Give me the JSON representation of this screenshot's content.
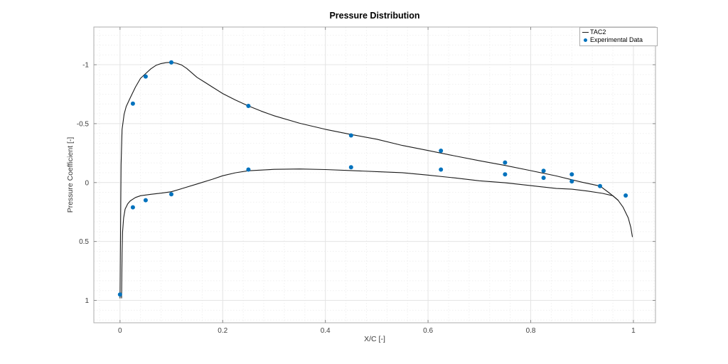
{
  "chart_data": {
    "type": "line+scatter",
    "title": "Pressure Distribution",
    "xlabel": "X/C [-]",
    "ylabel": "Pressure Coefficient [-]",
    "x_axis": {
      "lim": [
        -0.051,
        1.043
      ],
      "ticks": [
        0,
        0.2,
        0.4,
        0.6,
        0.8,
        1
      ],
      "tick_labels": [
        "0",
        "0.2",
        "0.4",
        "0.6",
        "0.8",
        "1"
      ],
      "minor_step": 0.04
    },
    "y_axis": {
      "reversed": true,
      "lim_top_to_bottom": [
        -1.32,
        1.19
      ],
      "ticks": [
        -1,
        -0.5,
        0,
        0.5,
        1
      ],
      "tick_labels": [
        "-1",
        "-0.5",
        "0",
        "0.5",
        "1"
      ],
      "minor_step": 0.08333
    },
    "grid": {
      "major": true,
      "minor": true
    },
    "legend": {
      "position": "top-right",
      "entries": [
        {
          "label": "TAC2",
          "swatch": "line",
          "color": "#1a1a1a"
        },
        {
          "label": "Experimental Data",
          "swatch": "marker",
          "color": "#0072BD"
        }
      ]
    },
    "series": [
      {
        "name": "TAC2",
        "type": "line",
        "color": "#1a1a1a",
        "line_width": 1.1,
        "branches": {
          "upper_surface": [
            [
              0.0,
              0.98
            ],
            [
              0.001,
              0.4
            ],
            [
              0.002,
              -0.15
            ],
            [
              0.004,
              -0.45
            ],
            [
              0.008,
              -0.58
            ],
            [
              0.012,
              -0.645
            ],
            [
              0.02,
              -0.72
            ],
            [
              0.03,
              -0.81
            ],
            [
              0.04,
              -0.885
            ],
            [
              0.05,
              -0.925
            ],
            [
              0.06,
              -0.965
            ],
            [
              0.07,
              -0.995
            ],
            [
              0.08,
              -1.01
            ],
            [
              0.09,
              -1.018
            ],
            [
              0.1,
              -1.02
            ],
            [
              0.11,
              -1.012
            ],
            [
              0.12,
              -0.998
            ],
            [
              0.13,
              -0.968
            ],
            [
              0.15,
              -0.893
            ],
            [
              0.165,
              -0.852
            ],
            [
              0.18,
              -0.81
            ],
            [
              0.2,
              -0.755
            ],
            [
              0.225,
              -0.7
            ],
            [
              0.25,
              -0.65
            ],
            [
              0.275,
              -0.606
            ],
            [
              0.3,
              -0.567
            ],
            [
              0.35,
              -0.503
            ],
            [
              0.4,
              -0.452
            ],
            [
              0.45,
              -0.408
            ],
            [
              0.5,
              -0.368
            ],
            [
              0.55,
              -0.315
            ],
            [
              0.6,
              -0.272
            ],
            [
              0.65,
              -0.228
            ],
            [
              0.7,
              -0.185
            ],
            [
              0.75,
              -0.145
            ],
            [
              0.8,
              -0.101
            ],
            [
              0.85,
              -0.056
            ],
            [
              0.88,
              -0.024
            ],
            [
              0.9,
              -0.003
            ],
            [
              0.935,
              0.03
            ],
            [
              0.955,
              0.095
            ],
            [
              0.97,
              0.15
            ],
            [
              0.98,
              0.21
            ],
            [
              0.99,
              0.3
            ],
            [
              0.995,
              0.38
            ],
            [
              0.998,
              0.46
            ]
          ],
          "lower_surface": [
            [
              0.003,
              0.98
            ],
            [
              0.004,
              0.6
            ],
            [
              0.005,
              0.42
            ],
            [
              0.007,
              0.3
            ],
            [
              0.01,
              0.225
            ],
            [
              0.015,
              0.18
            ],
            [
              0.02,
              0.155
            ],
            [
              0.03,
              0.127
            ],
            [
              0.04,
              0.112
            ],
            [
              0.06,
              0.1
            ],
            [
              0.08,
              0.09
            ],
            [
              0.1,
              0.078
            ],
            [
              0.12,
              0.052
            ],
            [
              0.15,
              0.012
            ],
            [
              0.18,
              -0.028
            ],
            [
              0.2,
              -0.058
            ],
            [
              0.225,
              -0.083
            ],
            [
              0.25,
              -0.1
            ],
            [
              0.3,
              -0.112
            ],
            [
              0.35,
              -0.115
            ],
            [
              0.4,
              -0.11
            ],
            [
              0.45,
              -0.102
            ],
            [
              0.5,
              -0.093
            ],
            [
              0.55,
              -0.084
            ],
            [
              0.6,
              -0.063
            ],
            [
              0.65,
              -0.04
            ],
            [
              0.7,
              -0.015
            ],
            [
              0.75,
              0.002
            ],
            [
              0.8,
              0.026
            ],
            [
              0.85,
              0.05
            ],
            [
              0.88,
              0.056
            ],
            [
              0.91,
              0.072
            ],
            [
              0.94,
              0.092
            ],
            [
              0.96,
              0.112
            ],
            [
              0.97,
              0.15
            ]
          ]
        }
      },
      {
        "name": "Experimental Data",
        "type": "scatter",
        "color": "#0072BD",
        "marker": "circle",
        "marker_radius": 3,
        "points": [
          [
            0.0,
            0.95
          ],
          [
            0.025,
            -0.67
          ],
          [
            0.05,
            -0.9
          ],
          [
            0.1,
            -1.02
          ],
          [
            0.25,
            -0.65
          ],
          [
            0.45,
            -0.4
          ],
          [
            0.625,
            -0.27
          ],
          [
            0.75,
            -0.17
          ],
          [
            0.825,
            -0.1
          ],
          [
            0.88,
            -0.07
          ],
          [
            0.025,
            0.21
          ],
          [
            0.05,
            0.15
          ],
          [
            0.1,
            0.1
          ],
          [
            0.25,
            -0.11
          ],
          [
            0.45,
            -0.13
          ],
          [
            0.625,
            -0.11
          ],
          [
            0.75,
            -0.07
          ],
          [
            0.825,
            -0.04
          ],
          [
            0.88,
            -0.01
          ],
          [
            0.935,
            0.03
          ],
          [
            0.985,
            0.11
          ]
        ]
      }
    ],
    "style": {
      "axis_box_color": "#adadad",
      "tick_color": "#8a8a8a",
      "tick_label_color": "#404040",
      "major_grid_color": "#e4e4e4",
      "minor_grid_color": "#f0f0f0",
      "background": "#ffffff"
    }
  }
}
